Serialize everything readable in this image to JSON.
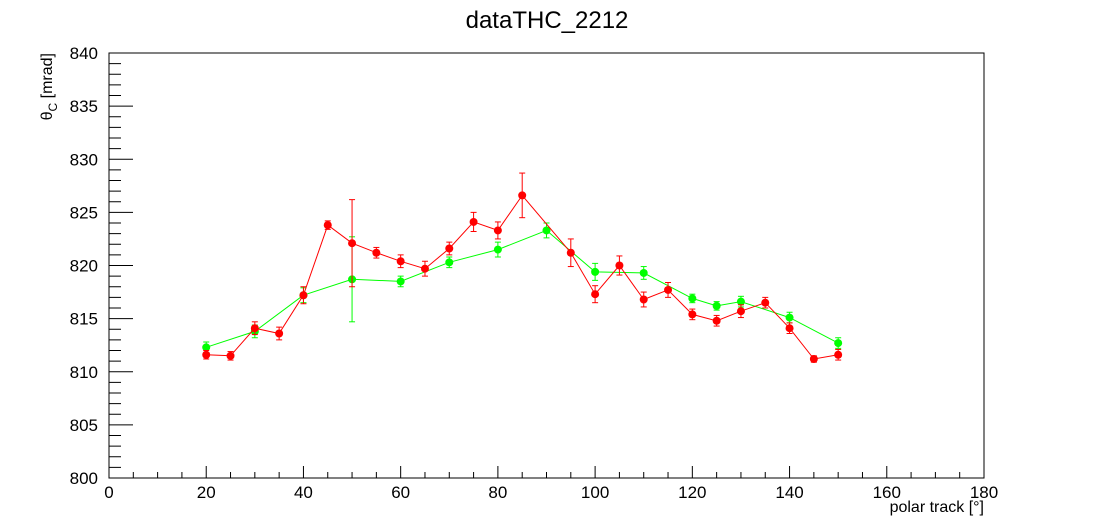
{
  "chart_data": {
    "type": "scatter",
    "title": "dataTHC_2212",
    "xlabel": "polar track [°]",
    "ylabel": {
      "main": "θ",
      "sub": "C",
      "rest": " [mrad]"
    },
    "xlim": [
      0,
      180
    ],
    "ylim": [
      800,
      840
    ],
    "x_ticks": [
      0,
      20,
      40,
      60,
      80,
      100,
      120,
      140,
      160,
      180
    ],
    "y_ticks": [
      800,
      805,
      810,
      815,
      820,
      825,
      830,
      835,
      840
    ],
    "grid": false,
    "series": [
      {
        "color": "#00ff00",
        "points": [
          {
            "x": 20,
            "y": 812.3,
            "err": 0.5
          },
          {
            "x": 30,
            "y": 813.8,
            "err": 0.6
          },
          {
            "x": 40,
            "y": 817.2,
            "err": 0.7
          },
          {
            "x": 50,
            "y": 818.7,
            "err": 4.0
          },
          {
            "x": 60,
            "y": 818.5,
            "err": 0.5
          },
          {
            "x": 70,
            "y": 820.3,
            "err": 0.5
          },
          {
            "x": 80,
            "y": 821.5,
            "err": 0.7
          },
          {
            "x": 90,
            "y": 823.3,
            "err": 0.7
          },
          {
            "x": 100,
            "y": 819.4,
            "err": 0.8
          },
          {
            "x": 110,
            "y": 819.3,
            "err": 0.6
          },
          {
            "x": 120,
            "y": 816.9,
            "err": 0.4
          },
          {
            "x": 125,
            "y": 816.2,
            "err": 0.4
          },
          {
            "x": 130,
            "y": 816.6,
            "err": 0.5
          },
          {
            "x": 140,
            "y": 815.1,
            "err": 0.5
          },
          {
            "x": 150,
            "y": 812.7,
            "err": 0.5
          }
        ]
      },
      {
        "color": "#ff0000",
        "points": [
          {
            "x": 20,
            "y": 811.6,
            "err": 0.4
          },
          {
            "x": 25,
            "y": 811.5,
            "err": 0.4
          },
          {
            "x": 30,
            "y": 814.1,
            "err": 0.6
          },
          {
            "x": 35,
            "y": 813.6,
            "err": 0.6
          },
          {
            "x": 40,
            "y": 817.2,
            "err": 0.8
          },
          {
            "x": 45,
            "y": 823.8,
            "err": 0.4
          },
          {
            "x": 50,
            "y": 822.1,
            "err": 4.1
          },
          {
            "x": 55,
            "y": 821.2,
            "err": 0.5
          },
          {
            "x": 60,
            "y": 820.4,
            "err": 0.6
          },
          {
            "x": 65,
            "y": 819.7,
            "err": 0.7
          },
          {
            "x": 70,
            "y": 821.6,
            "err": 0.6
          },
          {
            "x": 75,
            "y": 824.1,
            "err": 0.9
          },
          {
            "x": 80,
            "y": 823.3,
            "err": 0.8
          },
          {
            "x": 85,
            "y": 826.6,
            "err": 2.1
          },
          {
            "x": 95,
            "y": 821.2,
            "err": 1.3
          },
          {
            "x": 100,
            "y": 817.3,
            "err": 0.8
          },
          {
            "x": 105,
            "y": 820.0,
            "err": 0.9
          },
          {
            "x": 110,
            "y": 816.8,
            "err": 0.7
          },
          {
            "x": 115,
            "y": 817.7,
            "err": 0.7
          },
          {
            "x": 120,
            "y": 815.4,
            "err": 0.5
          },
          {
            "x": 125,
            "y": 814.8,
            "err": 0.5
          },
          {
            "x": 130,
            "y": 815.7,
            "err": 0.6
          },
          {
            "x": 135,
            "y": 816.5,
            "err": 0.5
          },
          {
            "x": 140,
            "y": 814.1,
            "err": 0.5
          },
          {
            "x": 145,
            "y": 811.2,
            "err": 0.3
          },
          {
            "x": 150,
            "y": 811.6,
            "err": 0.5
          }
        ]
      }
    ]
  }
}
